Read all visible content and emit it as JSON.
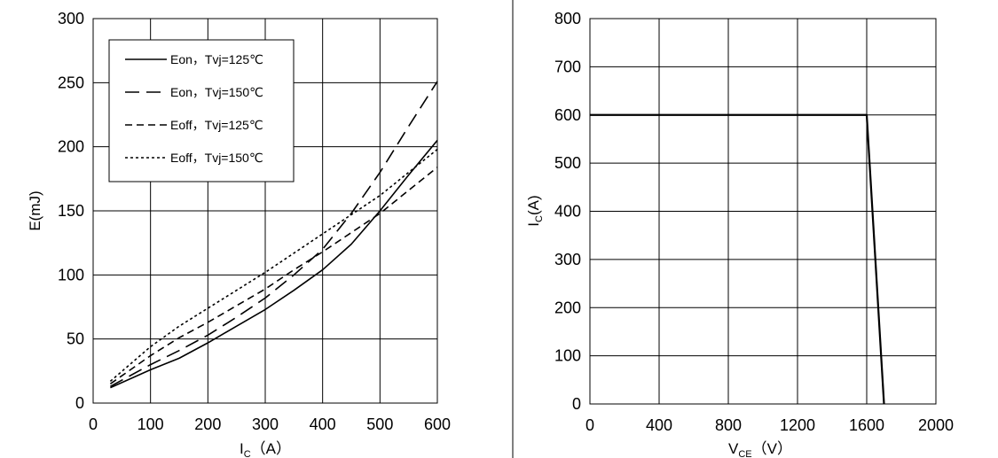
{
  "chart_data": [
    {
      "type": "line",
      "title": "",
      "xlabel": {
        "main": "I",
        "sub": "C",
        "rest": "（A）"
      },
      "ylabel": "E(mJ)",
      "xlim": [
        0,
        600
      ],
      "ylim": [
        0,
        300
      ],
      "x_ticks": [
        0,
        100,
        200,
        300,
        400,
        500,
        600
      ],
      "y_ticks": [
        0,
        50,
        100,
        150,
        200,
        250,
        300
      ],
      "grid": true,
      "legend_position": "top-left",
      "series": [
        {
          "name": "Eon，Tvj=125℃",
          "style": "solid",
          "x": [
            30,
            100,
            150,
            200,
            250,
            300,
            350,
            400,
            450,
            500,
            550,
            600
          ],
          "y": [
            12,
            26,
            35,
            47,
            60,
            73,
            88,
            104,
            124,
            150,
            178,
            205
          ]
        },
        {
          "name": "Eon，Tvj=150℃",
          "style": "long-dash",
          "x": [
            30,
            100,
            150,
            200,
            250,
            300,
            350,
            400,
            450,
            500,
            550,
            600
          ],
          "y": [
            13,
            30,
            41,
            53,
            67,
            82,
            100,
            120,
            148,
            180,
            216,
            251
          ]
        },
        {
          "name": "Eoff，Tvj=125℃",
          "style": "dash",
          "x": [
            30,
            100,
            150,
            200,
            250,
            300,
            350,
            400,
            450,
            500,
            550,
            600
          ],
          "y": [
            15,
            37,
            51,
            63,
            76,
            89,
            104,
            118,
            133,
            148,
            166,
            184
          ]
        },
        {
          "name": "Eoff，Tvj=150℃",
          "style": "dot",
          "x": [
            30,
            100,
            150,
            200,
            250,
            300,
            350,
            400,
            450,
            500,
            550,
            600
          ],
          "y": [
            17,
            44,
            60,
            74,
            88,
            102,
            117,
            132,
            147,
            162,
            180,
            198
          ]
        }
      ]
    },
    {
      "type": "line",
      "title": "",
      "xlabel": {
        "main": "V",
        "sub": "CE",
        "rest": "（V）"
      },
      "ylabel": {
        "main": "I",
        "sub": "C",
        "rest": "(A)"
      },
      "xlim": [
        0,
        2000
      ],
      "ylim": [
        0,
        800
      ],
      "x_ticks": [
        0,
        400,
        800,
        1200,
        1600,
        2000
      ],
      "y_ticks": [
        0,
        100,
        200,
        300,
        400,
        500,
        600,
        700,
        800
      ],
      "grid": true,
      "series": [
        {
          "style": "solid-bold",
          "x": [
            0,
            1600,
            1700
          ],
          "y": [
            600,
            600,
            0
          ]
        }
      ]
    }
  ],
  "colors": {
    "grid": "#000000",
    "line": "#000000",
    "separator": "#000000"
  }
}
